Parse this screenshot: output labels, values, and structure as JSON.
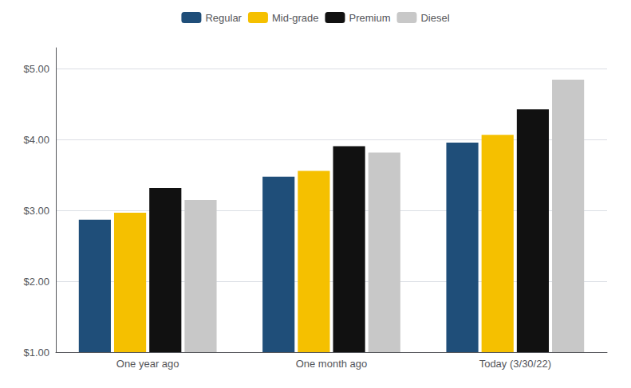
{
  "chart_data": {
    "type": "bar",
    "categories": [
      "One year ago",
      "One month ago",
      "Today (3/30/22)"
    ],
    "series": [
      {
        "name": "Regular",
        "color": "#1f4e79",
        "values": [
          2.87,
          3.48,
          3.96
        ]
      },
      {
        "name": "Mid-grade",
        "color": "#f5c000",
        "values": [
          2.97,
          3.56,
          4.07
        ]
      },
      {
        "name": "Premium",
        "color": "#111111",
        "values": [
          3.32,
          3.91,
          4.43
        ]
      },
      {
        "name": "Diesel",
        "color": "#c8c8c8",
        "values": [
          3.15,
          3.82,
          4.85
        ]
      }
    ],
    "ylim": [
      1.0,
      5.3
    ],
    "yticks": [
      {
        "value": 1.0,
        "label": "$1.00"
      },
      {
        "value": 2.0,
        "label": "$2.00"
      },
      {
        "value": 3.0,
        "label": "$3.00"
      },
      {
        "value": 4.0,
        "label": "$4.00"
      },
      {
        "value": 5.0,
        "label": "$5.00"
      }
    ],
    "grid": true,
    "legend": "top"
  }
}
